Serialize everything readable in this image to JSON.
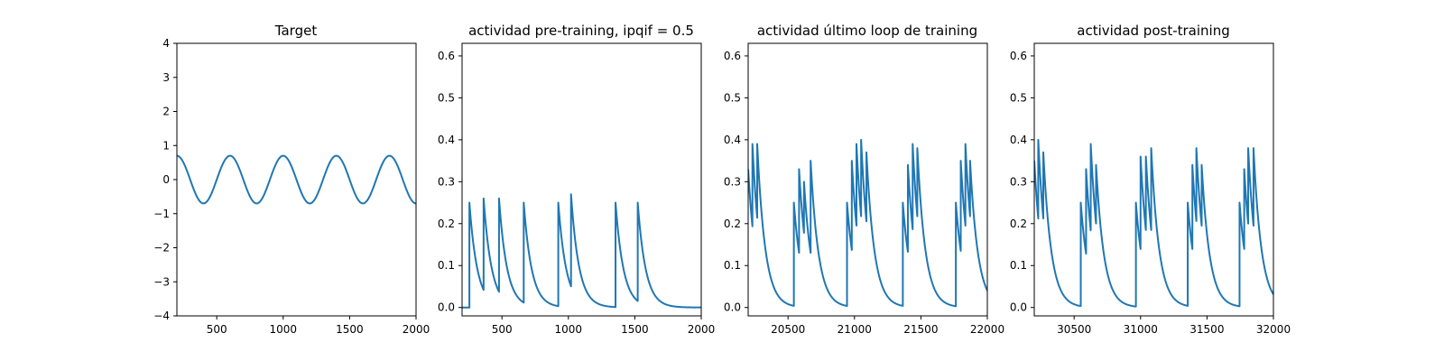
{
  "figure": {
    "background": "#ffffff",
    "line_color": "#1f77b4"
  },
  "chart_data": [
    {
      "type": "line",
      "title": "Target",
      "xlim": [
        200,
        2000
      ],
      "ylim": [
        -4,
        4
      ],
      "xticks": [
        "500",
        "1000",
        "1500",
        "2000"
      ],
      "xtick_values": [
        500,
        1000,
        1500,
        2000
      ],
      "yticks": [
        "−4",
        "−3",
        "−2",
        "−1",
        "0",
        "1",
        "2",
        "3",
        "4"
      ],
      "ytick_values": [
        -4,
        -3,
        -2,
        -1,
        0,
        1,
        2,
        3,
        4
      ],
      "series": [
        {
          "kind": "sine",
          "amplitude": 0.7,
          "period": 400,
          "peak_x": 200
        }
      ]
    },
    {
      "type": "line",
      "title": "actividad pre-training, ipqif = 0.5",
      "xlim": [
        200,
        2000
      ],
      "ylim": [
        -0.02,
        0.63
      ],
      "xticks": [
        "500",
        "1000",
        "1500",
        "2000"
      ],
      "xtick_values": [
        500,
        1000,
        1500,
        2000
      ],
      "yticks": [
        "0.0",
        "0.1",
        "0.2",
        "0.3",
        "0.4",
        "0.5",
        "0.6"
      ],
      "ytick_values": [
        0,
        0.1,
        0.2,
        0.3,
        0.4,
        0.5,
        0.6
      ],
      "series": [
        {
          "kind": "spikes",
          "start_x": 200,
          "tau": 60,
          "spikes": [
            {
              "x": 255,
              "peak": 0.25
            },
            {
              "x": 362,
              "peak": 0.26
            },
            {
              "x": 478,
              "peak": 0.26
            },
            {
              "x": 664,
              "peak": 0.25
            },
            {
              "x": 924,
              "peak": 0.25
            },
            {
              "x": 1020,
              "peak": 0.27
            },
            {
              "x": 1355,
              "peak": 0.25
            },
            {
              "x": 1522,
              "peak": 0.25
            }
          ]
        }
      ]
    },
    {
      "type": "line",
      "title": "actividad último loop de training",
      "xlim": [
        20200,
        22000
      ],
      "ylim": [
        -0.02,
        0.63
      ],
      "xticks": [
        "20500",
        "21000",
        "21500",
        "22000"
      ],
      "xtick_values": [
        20500,
        21000,
        21500,
        22000
      ],
      "yticks": [
        "0.0",
        "0.1",
        "0.2",
        "0.3",
        "0.4",
        "0.5",
        "0.6"
      ],
      "ytick_values": [
        0,
        0.1,
        0.2,
        0.3,
        0.4,
        0.5,
        0.6
      ],
      "series": [
        {
          "kind": "spikes",
          "start_x": 20200,
          "start_value": 0.33,
          "tau": 60,
          "spikes": [
            {
              "x": 20232,
              "peak": 0.39
            },
            {
              "x": 20268,
              "peak": 0.39
            },
            {
              "x": 20544,
              "peak": 0.25
            },
            {
              "x": 20583,
              "peak": 0.33
            },
            {
              "x": 20620,
              "peak": 0.3
            },
            {
              "x": 20670,
              "peak": 0.35
            },
            {
              "x": 20944,
              "peak": 0.25
            },
            {
              "x": 20980,
              "peak": 0.35
            },
            {
              "x": 21015,
              "peak": 0.39
            },
            {
              "x": 21050,
              "peak": 0.4
            },
            {
              "x": 21090,
              "peak": 0.37
            },
            {
              "x": 21364,
              "peak": 0.25
            },
            {
              "x": 21402,
              "peak": 0.34
            },
            {
              "x": 21438,
              "peak": 0.39
            },
            {
              "x": 21473,
              "peak": 0.38
            },
            {
              "x": 21763,
              "peak": 0.25
            },
            {
              "x": 21800,
              "peak": 0.35
            },
            {
              "x": 21835,
              "peak": 0.39
            },
            {
              "x": 21870,
              "peak": 0.35
            }
          ]
        }
      ]
    },
    {
      "type": "line",
      "title": "actividad post-training",
      "xlim": [
        30200,
        32000
      ],
      "ylim": [
        -0.02,
        0.63
      ],
      "xticks": [
        "30500",
        "31000",
        "31500",
        "32000"
      ],
      "xtick_values": [
        30500,
        31000,
        31500,
        32000
      ],
      "yticks": [
        "0.0",
        "0.1",
        "0.2",
        "0.3",
        "0.4",
        "0.5",
        "0.6"
      ],
      "ytick_values": [
        0,
        0.1,
        0.2,
        0.3,
        0.4,
        0.5,
        0.6
      ],
      "series": [
        {
          "kind": "spikes",
          "start_x": 30200,
          "start_value": 0.35,
          "tau": 60,
          "spikes": [
            {
              "x": 30230,
              "peak": 0.4
            },
            {
              "x": 30268,
              "peak": 0.37
            },
            {
              "x": 30550,
              "peak": 0.25
            },
            {
              "x": 30590,
              "peak": 0.33
            },
            {
              "x": 30625,
              "peak": 0.39
            },
            {
              "x": 30665,
              "peak": 0.34
            },
            {
              "x": 30965,
              "peak": 0.25
            },
            {
              "x": 31000,
              "peak": 0.36
            },
            {
              "x": 31040,
              "peak": 0.36
            },
            {
              "x": 31080,
              "peak": 0.38
            },
            {
              "x": 31355,
              "peak": 0.25
            },
            {
              "x": 31390,
              "peak": 0.34
            },
            {
              "x": 31420,
              "peak": 0.38
            },
            {
              "x": 31460,
              "peak": 0.34
            },
            {
              "x": 31745,
              "peak": 0.25
            },
            {
              "x": 31780,
              "peak": 0.33
            },
            {
              "x": 31810,
              "peak": 0.38
            },
            {
              "x": 31850,
              "peak": 0.38
            }
          ]
        }
      ]
    }
  ]
}
